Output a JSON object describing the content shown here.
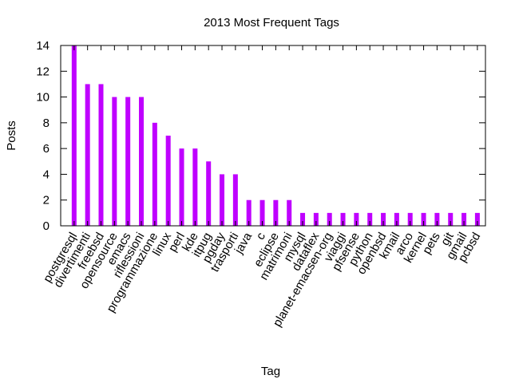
{
  "chart_data": {
    "type": "bar",
    "title": "2013 Most Frequent Tags",
    "xlabel": "Tag",
    "ylabel": "Posts",
    "ylim": [
      0,
      14
    ],
    "yticks": [
      "0",
      "2",
      "4",
      "6",
      "8",
      "10",
      "12",
      "14"
    ],
    "grid": false,
    "bar_color": "#bf00ff",
    "categories": [
      "postgresql",
      "divertimenti",
      "freebsd",
      "opensource",
      "emacs",
      "riflessioni",
      "programmazione",
      "linux",
      "perl",
      "kde",
      "itpug",
      "pgday",
      "trasporti",
      "java",
      "c",
      "eclipse",
      "matrimoni",
      "mysql",
      "dataflex",
      "planet-emacsen-org",
      "viaggi",
      "pfsense",
      "python",
      "openbsd",
      "kmail",
      "arco",
      "kernel",
      "pets",
      "git",
      "gmail",
      "pcbsd"
    ],
    "values": [
      14,
      11,
      11,
      10,
      10,
      10,
      8,
      7,
      6,
      6,
      5,
      4,
      4,
      2,
      2,
      2,
      2,
      1,
      1,
      1,
      1,
      1,
      1,
      1,
      1,
      1,
      1,
      1,
      1,
      1,
      1
    ]
  }
}
